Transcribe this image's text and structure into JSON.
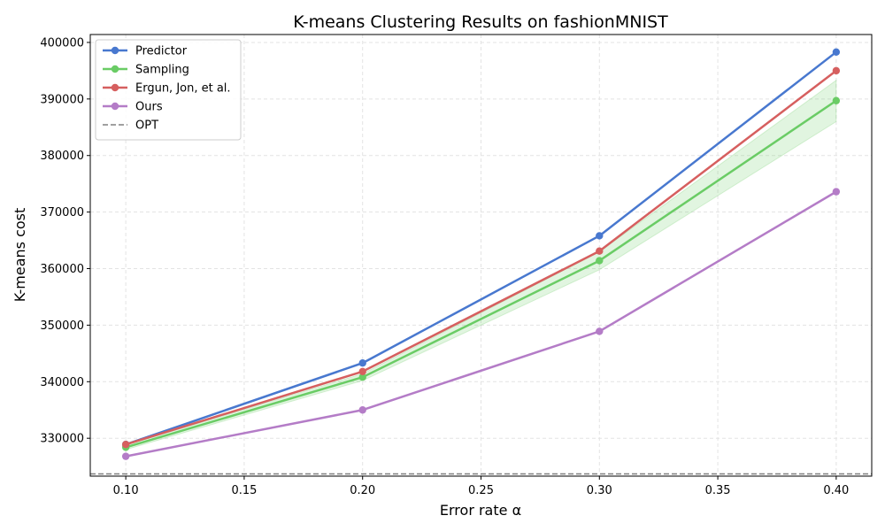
{
  "chart_data": {
    "type": "line",
    "title": "K-means Clustering Results on fashionMNIST",
    "xlabel": "Error rate α",
    "ylabel": "K-means cost",
    "x": [
      0.1,
      0.2,
      0.3,
      0.4
    ],
    "xlim": [
      0.085,
      0.415
    ],
    "ylim": [
      323300,
      401400
    ],
    "xticks": [
      "0.10",
      "0.15",
      "0.20",
      "0.25",
      "0.30",
      "0.35",
      "0.40"
    ],
    "xtick_values": [
      0.1,
      0.15,
      0.2,
      0.25,
      0.3,
      0.35,
      0.4
    ],
    "yticks": [
      "330000",
      "340000",
      "350000",
      "360000",
      "370000",
      "380000",
      "390000",
      "400000"
    ],
    "ytick_values": [
      330000,
      340000,
      350000,
      360000,
      370000,
      380000,
      390000,
      400000
    ],
    "grid": true,
    "legend_position": "top-left",
    "series": [
      {
        "name": "Predictor",
        "color": "#4878CF",
        "values": [
          328900,
          343300,
          365800,
          398300
        ]
      },
      {
        "name": "Sampling",
        "color": "#6ACC65",
        "values": [
          328400,
          340800,
          361400,
          389700
        ],
        "band_low": [
          328000,
          340200,
          359800,
          386000
        ],
        "band_high": [
          328800,
          341400,
          363000,
          393300
        ]
      },
      {
        "name": "Ergun, Jon, et al.",
        "color": "#D65F5F",
        "values": [
          328900,
          341800,
          363100,
          395000
        ]
      },
      {
        "name": "Ours",
        "color": "#B47CC7",
        "values": [
          326800,
          335000,
          348900,
          373600
        ]
      }
    ],
    "reference": {
      "name": "OPT",
      "value": 323700,
      "color": "#808080",
      "style": "dashed"
    }
  }
}
